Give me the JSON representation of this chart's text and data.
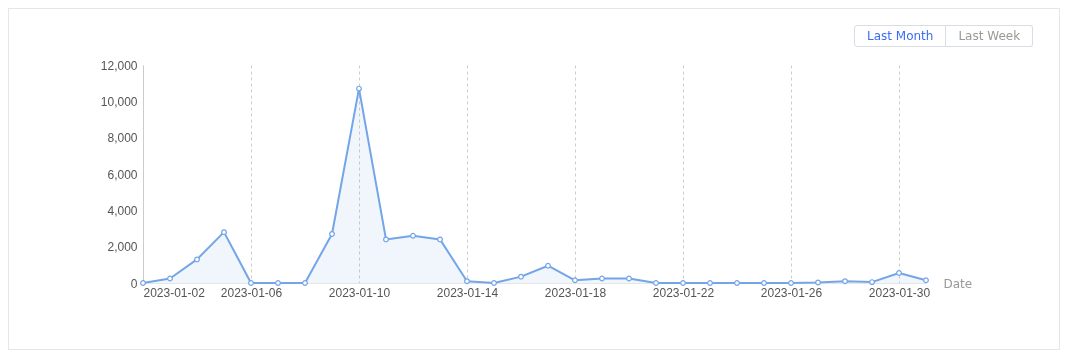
{
  "chart_data": {
    "type": "area",
    "xlabel": "Date",
    "x": [
      "2023-01-02",
      "2023-01-03",
      "2023-01-04",
      "2023-01-05",
      "2023-01-06",
      "2023-01-07",
      "2023-01-08",
      "2023-01-09",
      "2023-01-10",
      "2023-01-11",
      "2023-01-12",
      "2023-01-13",
      "2023-01-14",
      "2023-01-15",
      "2023-01-16",
      "2023-01-17",
      "2023-01-18",
      "2023-01-19",
      "2023-01-20",
      "2023-01-21",
      "2023-01-22",
      "2023-01-23",
      "2023-01-24",
      "2023-01-25",
      "2023-01-26",
      "2023-01-27",
      "2023-01-28",
      "2023-01-29",
      "2023-01-30",
      "2023-01-31"
    ],
    "series": [
      {
        "color": "#73a5e8",
        "values": [
          0,
          250,
          1300,
          2800,
          0,
          0,
          0,
          2700,
          10700,
          2400,
          2600,
          2400,
          100,
          0,
          350,
          950,
          150,
          250,
          250,
          0,
          0,
          0,
          0,
          0,
          0,
          30,
          100,
          50,
          550,
          150
        ]
      }
    ],
    "xlim": [
      "2023-01-02",
      "2023-01-31"
    ],
    "xticks": [
      "2023-01-02",
      "2023-01-06",
      "2023-01-10",
      "2023-01-14",
      "2023-01-18",
      "2023-01-22",
      "2023-01-26",
      "2023-01-30"
    ],
    "ylim": [
      0,
      12000
    ],
    "yticks": [
      {
        "value": 0,
        "label": "0"
      },
      {
        "value": 2000,
        "label": "2,000"
      },
      {
        "value": 4000,
        "label": "4,000"
      },
      {
        "value": 6000,
        "label": "6,000"
      },
      {
        "value": 8000,
        "label": "8,000"
      },
      {
        "value": 10000,
        "label": "10,000"
      },
      {
        "value": 12000,
        "label": "12,000"
      }
    ],
    "grid": "x",
    "marker": "circle",
    "line_style": "solid",
    "annotations": [
      "Last Month",
      "Last Week"
    ]
  }
}
